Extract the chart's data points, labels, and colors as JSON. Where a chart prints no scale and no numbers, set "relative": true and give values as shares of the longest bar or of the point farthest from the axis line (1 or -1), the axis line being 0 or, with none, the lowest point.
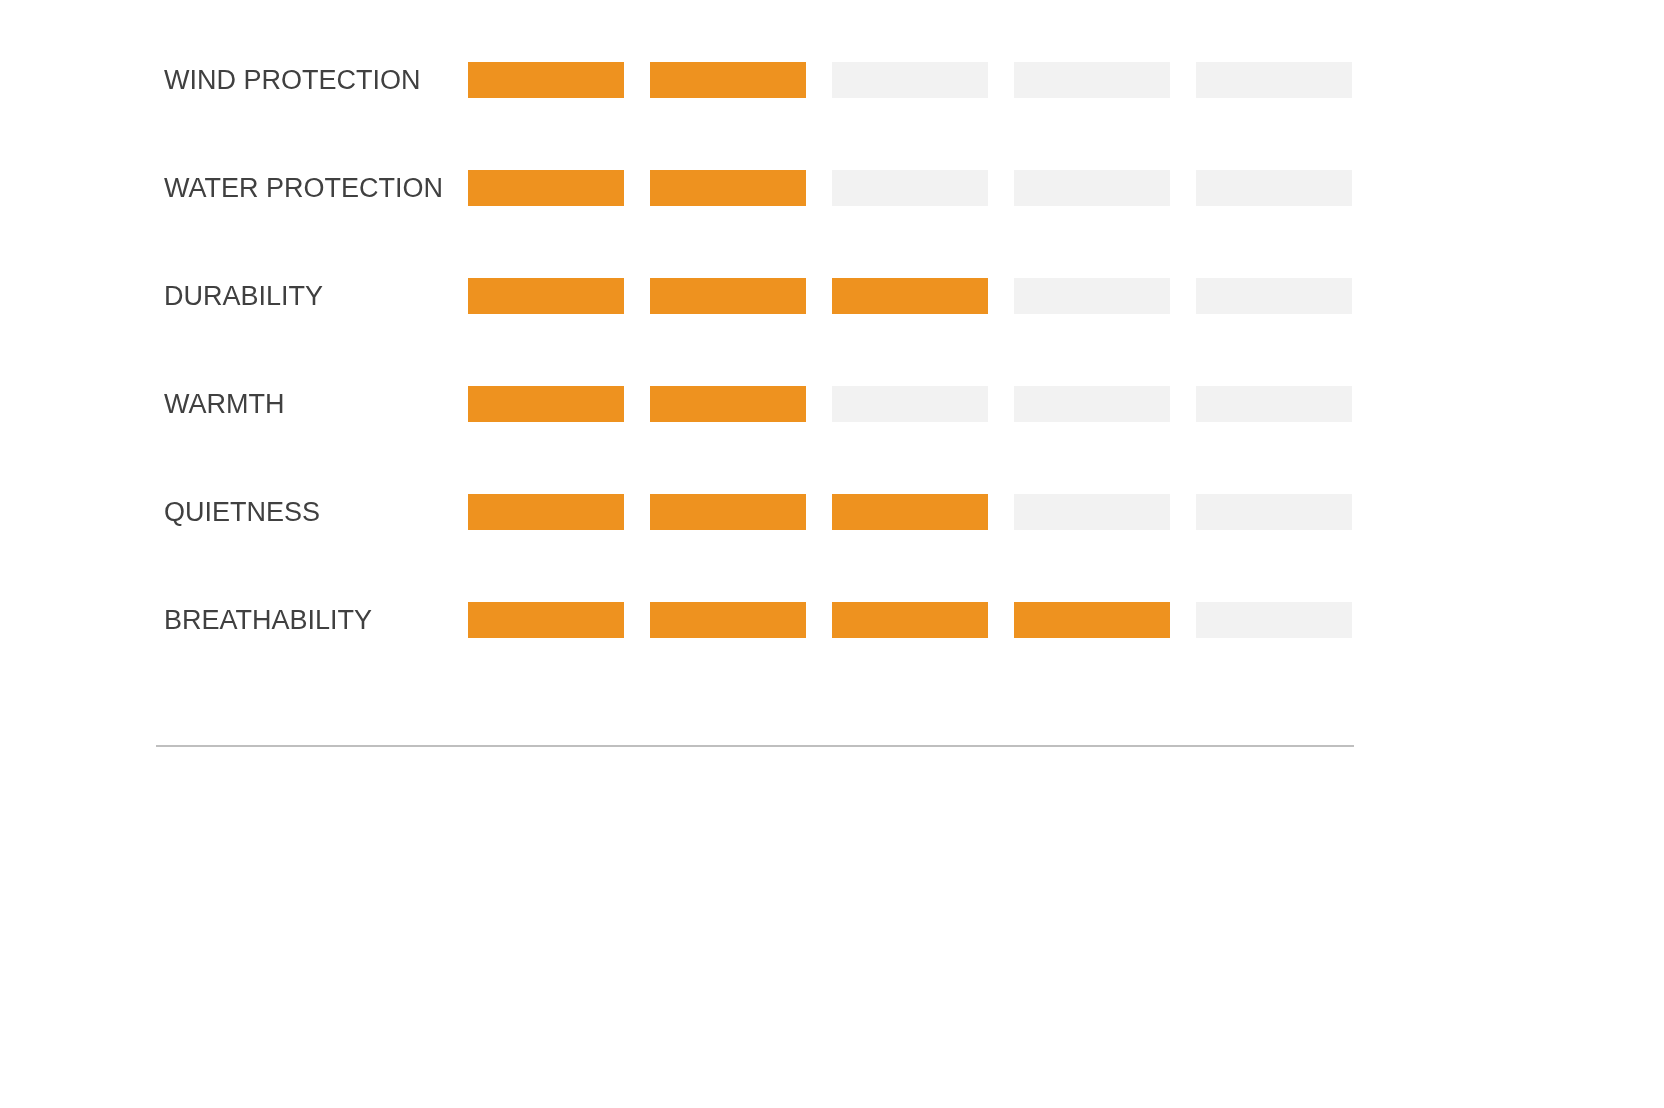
{
  "chart_data": {
    "type": "bar",
    "orientation": "horizontal",
    "stacked": true,
    "relative": true,
    "categories": [
      "WIND PROTECTION",
      "WATER PROTECTION",
      "DURABILITY",
      "WARMTH",
      "QUIETNESS",
      "BREATHABILITY"
    ],
    "series": [
      {
        "color": "#ee921f",
        "values": [
          0.4,
          0.4,
          0.6,
          0.4,
          0.6,
          0.8
        ]
      },
      {
        "color": "#f2f2f2",
        "values": [
          0.6,
          0.6,
          0.4,
          0.6,
          0.4,
          0.2
        ]
      }
    ]
  }
}
